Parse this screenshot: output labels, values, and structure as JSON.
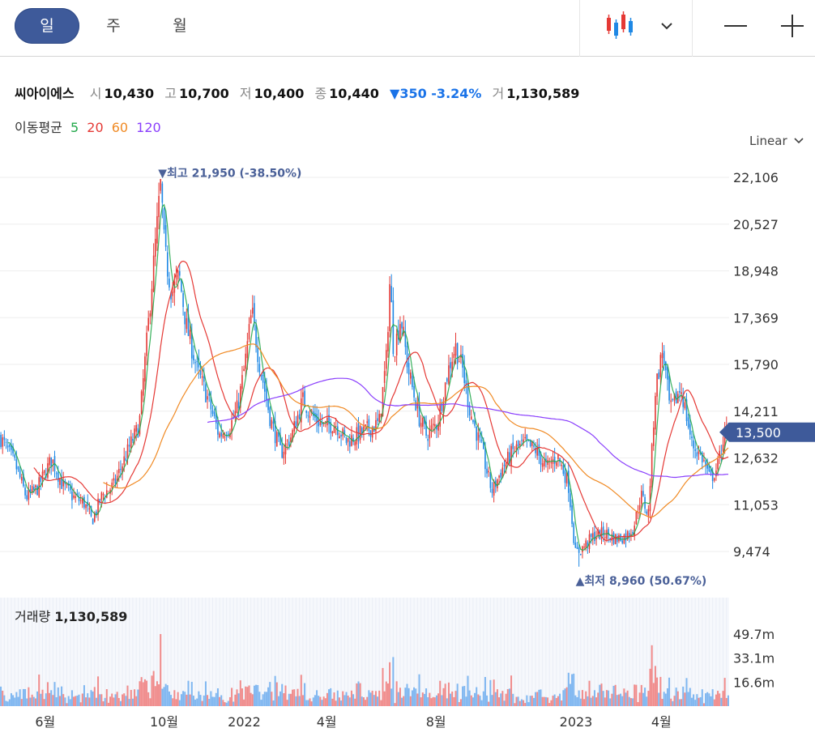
{
  "tabs": [
    {
      "label": "일"
    },
    {
      "label": "주"
    },
    {
      "label": "월"
    }
  ],
  "toolbar": {
    "chart_type_icon": "candlestick-icon",
    "dropdown_icon": "chevron-down-icon",
    "zoom_out_icon": "minus-icon",
    "zoom_in_icon": "plus-icon"
  },
  "stock": {
    "name": "씨아이에스",
    "open_label": "시",
    "open": "10,430",
    "high_label": "고",
    "high": "10,700",
    "low_label": "저",
    "low": "10,400",
    "close_label": "종",
    "close": "10,440",
    "change": "▼350 -3.24%",
    "volume_label": "거",
    "volume": "1,130,589"
  },
  "moving_average": {
    "label": "이동평균",
    "periods": [
      {
        "label": "5",
        "color": "#22a84a"
      },
      {
        "label": "20",
        "color": "#e53935"
      },
      {
        "label": "60",
        "color": "#f08a24"
      },
      {
        "label": "120",
        "color": "#8a3ffc"
      }
    ]
  },
  "scale_selector": {
    "label": "Linear"
  },
  "volume_panel": {
    "label": "거래량",
    "value": "1,130,589"
  },
  "colors": {
    "up": "#e53935",
    "down": "#1e88e5",
    "accent": "#3e5a9a",
    "annotation": "#4a6098"
  },
  "chart_data": {
    "type": "candlestick",
    "price_axis": {
      "ticks": [
        9474,
        11053,
        12632,
        14211,
        15790,
        17369,
        18948,
        20527,
        22106
      ],
      "tick_labels": [
        "9,474",
        "11,053",
        "12,632",
        "14,211",
        "15,790",
        "17,369",
        "18,948",
        "20,527",
        "22,106"
      ]
    },
    "current_price": {
      "value": 13500,
      "label": "13,500"
    },
    "max_annotation": {
      "text": "▼최고 21,950 (-38.50%)",
      "value": 21950
    },
    "min_annotation": {
      "text": "▲최저 8,960 (50.67%)",
      "value": 8960
    },
    "x_tick_labels": [
      "6월",
      "10월",
      "2022",
      "4월",
      "8월",
      "2023",
      "4월"
    ],
    "volume_axis": {
      "tick_labels": [
        "49.7m",
        "33.1m",
        "16.6m"
      ],
      "ticks": [
        49.7,
        33.1,
        16.6
      ]
    },
    "close_path": [
      [
        0.0,
        13300
      ],
      [
        0.02,
        12400
      ],
      [
        0.035,
        11300
      ],
      [
        0.05,
        11600
      ],
      [
        0.07,
        12600
      ],
      [
        0.085,
        11700
      ],
      [
        0.1,
        11300
      ],
      [
        0.115,
        11100
      ],
      [
        0.125,
        10500
      ],
      [
        0.14,
        11400
      ],
      [
        0.155,
        11700
      ],
      [
        0.165,
        12300
      ],
      [
        0.18,
        13200
      ],
      [
        0.19,
        13700
      ],
      [
        0.2,
        16400
      ],
      [
        0.21,
        19200
      ],
      [
        0.22,
        21950
      ],
      [
        0.225,
        19600
      ],
      [
        0.235,
        18200
      ],
      [
        0.245,
        18800
      ],
      [
        0.255,
        17100
      ],
      [
        0.27,
        15600
      ],
      [
        0.285,
        14600
      ],
      [
        0.3,
        13400
      ],
      [
        0.315,
        13700
      ],
      [
        0.325,
        14300
      ],
      [
        0.335,
        15700
      ],
      [
        0.345,
        17600
      ],
      [
        0.355,
        15900
      ],
      [
        0.37,
        14000
      ],
      [
        0.385,
        12800
      ],
      [
        0.4,
        13400
      ],
      [
        0.415,
        14600
      ],
      [
        0.43,
        14000
      ],
      [
        0.445,
        13700
      ],
      [
        0.46,
        13800
      ],
      [
        0.475,
        13200
      ],
      [
        0.49,
        13400
      ],
      [
        0.505,
        13600
      ],
      [
        0.52,
        13800
      ],
      [
        0.53,
        16000
      ],
      [
        0.535,
        18700
      ],
      [
        0.54,
        16200
      ],
      [
        0.55,
        17400
      ],
      [
        0.56,
        15600
      ],
      [
        0.575,
        14000
      ],
      [
        0.585,
        13400
      ],
      [
        0.6,
        13800
      ],
      [
        0.615,
        15600
      ],
      [
        0.625,
        16400
      ],
      [
        0.635,
        15600
      ],
      [
        0.645,
        14200
      ],
      [
        0.66,
        13000
      ],
      [
        0.675,
        11500
      ],
      [
        0.69,
        12300
      ],
      [
        0.705,
        12900
      ],
      [
        0.72,
        13100
      ],
      [
        0.735,
        12900
      ],
      [
        0.75,
        12300
      ],
      [
        0.765,
        12700
      ],
      [
        0.78,
        11800
      ],
      [
        0.79,
        9400
      ],
      [
        0.8,
        9600
      ],
      [
        0.815,
        10000
      ],
      [
        0.83,
        10100
      ],
      [
        0.845,
        9900
      ],
      [
        0.86,
        10000
      ],
      [
        0.87,
        10300
      ],
      [
        0.88,
        11400
      ],
      [
        0.89,
        10700
      ],
      [
        0.9,
        15000
      ],
      [
        0.91,
        16300
      ],
      [
        0.92,
        14200
      ],
      [
        0.935,
        15000
      ],
      [
        0.95,
        13100
      ],
      [
        0.965,
        12600
      ],
      [
        0.975,
        11900
      ],
      [
        0.985,
        12300
      ],
      [
        0.995,
        13500
      ],
      [
        1.0,
        13500
      ]
    ]
  }
}
